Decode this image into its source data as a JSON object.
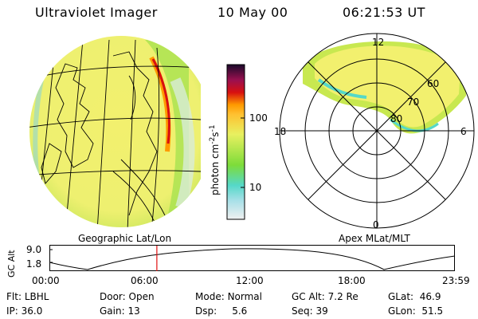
{
  "header": {
    "instrument": "Ultraviolet Imager",
    "date": "10 May 00",
    "time": "06:21:53 UT"
  },
  "colorbar": {
    "unit_label": "photon cm",
    "unit_sup1": "-2",
    "unit_mid": "s",
    "unit_sup2": "-1",
    "ticks": [
      "100",
      "10"
    ]
  },
  "polar": {
    "mlt_labels": {
      "top": "12",
      "left": "18",
      "right": "6",
      "bottom": "0"
    },
    "lat_labels": [
      "60",
      "70",
      "80"
    ]
  },
  "panel_labels": {
    "left": "Geographic Lat/Lon",
    "right": "Apex MLat/MLT"
  },
  "altitude_plot": {
    "ylabel": "GC Alt",
    "ytick_top": "9.0",
    "ytick_bottom": "1.8",
    "time_ticks": [
      "00:00",
      "06:00",
      "12:00",
      "18:00",
      "23:59"
    ],
    "current_time_fraction": 0.265
  },
  "info": {
    "flt_label": "Flt:",
    "flt_value": "LBHL",
    "door_label": "Door:",
    "door_value": "Open",
    "mode_label": "Mode:",
    "mode_value": "Normal",
    "gcalt_label": "GC Alt:",
    "gcalt_value": "7.2 Re",
    "glat_label": "GLat:",
    "glat_value": "46.9",
    "ip_label": "IP:",
    "ip_value": "36.0",
    "gain_label": "Gain:",
    "gain_value": "13",
    "dsp_label": "Dsp:",
    "dsp_value": "5.6",
    "seq_label": "Seq:",
    "seq_value": "39",
    "glon_label": "GLon:",
    "glon_value": "51.5"
  },
  "colors": {
    "low": "#f0f0f0",
    "cyan": "#55d8c8",
    "green": "#7ddc3a",
    "yellow": "#f2f06e",
    "orange": "#ff9a00",
    "red": "#d81010",
    "dark": "#2a0a3a",
    "marker": "#e01010"
  }
}
